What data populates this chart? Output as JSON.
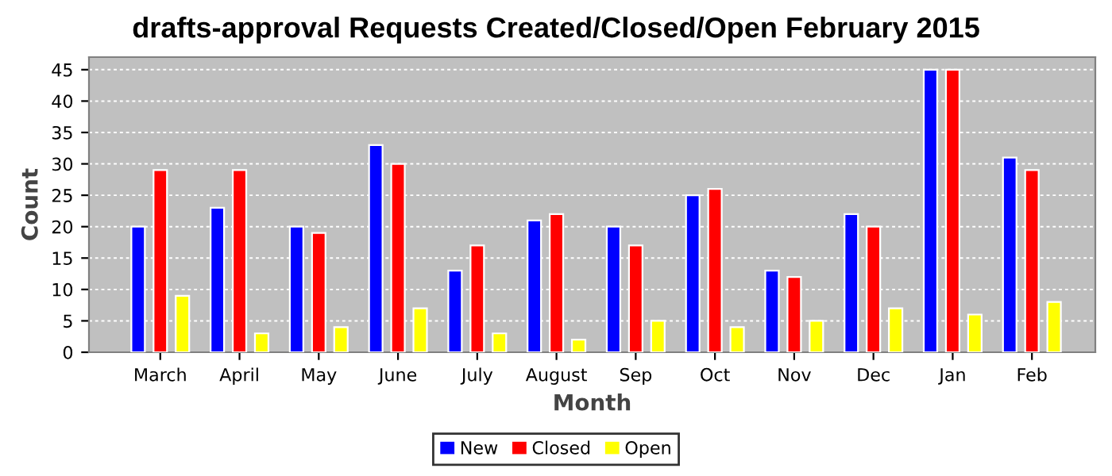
{
  "chart_data": {
    "type": "bar",
    "title": "drafts-approval Requests Created/Closed/Open February 2015",
    "xlabel": "Month",
    "ylabel": "Count",
    "categories": [
      "March",
      "April",
      "May",
      "June",
      "July",
      "August",
      "Sep",
      "Oct",
      "Nov",
      "Dec",
      "Jan",
      "Feb"
    ],
    "series": [
      {
        "name": "New",
        "color": "#0000ff",
        "values": [
          20,
          23,
          20,
          33,
          13,
          21,
          20,
          25,
          13,
          22,
          45,
          31
        ]
      },
      {
        "name": "Closed",
        "color": "#ff0000",
        "values": [
          29,
          29,
          19,
          30,
          17,
          22,
          17,
          26,
          12,
          20,
          45,
          29
        ]
      },
      {
        "name": "Open",
        "color": "#ffff00",
        "values": [
          9,
          3,
          4,
          7,
          3,
          2,
          5,
          4,
          5,
          7,
          6,
          8
        ]
      }
    ],
    "ylim": [
      0,
      47
    ],
    "yticks": [
      0,
      5,
      10,
      15,
      20,
      25,
      30,
      35,
      40,
      45
    ],
    "grid": "y",
    "legend": "bottom"
  }
}
